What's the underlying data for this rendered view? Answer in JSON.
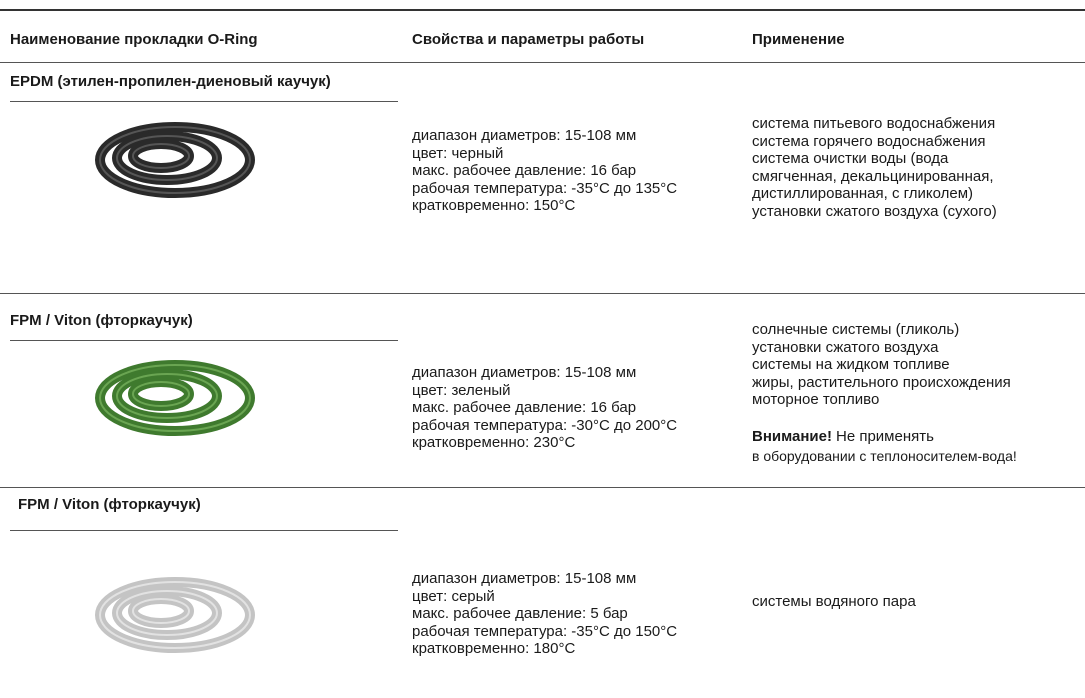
{
  "header": {
    "columns": [
      "Наименование прокладки O-Ring",
      "Свойства и параметры работы",
      "Применение"
    ]
  },
  "rows": [
    {
      "name": "EPDM (этилен-пропилен-диеновый каучук)",
      "properties": [
        "диапазон диаметров: 15-108 мм",
        "цвет: черный",
        "макс. рабочее давление: 16 бар",
        "рабочая температура: -35°C до 135°C",
        "кратковременно: 150°C"
      ],
      "application": [
        "система питьевого водоснабжения",
        "система горячего водоснабжения",
        "система очистки воды (вода",
        "смягченная, декальцинированная,",
        "дистиллированная, с гликолем)",
        "установки сжатого воздуха (сухого)"
      ]
    },
    {
      "name": "FPM / Viton (фторкаучук)",
      "properties": [
        "диапазон диаметров: 15-108 мм",
        "цвет: зеленый",
        "макс. рабочее давление: 16 бар",
        "рабочая температура: -30°C до 200°C",
        "кратковременно: 230°C"
      ],
      "application": [
        "солнечные системы (гликоль)",
        "установки сжатого воздуха",
        "системы на жидком топливе",
        "жиры, растительного происхождения",
        "моторное топливо"
      ],
      "warning": {
        "label": "Внимание!",
        "text": "Не применять",
        "detail": "в оборудовании с теплоносителем-вода!"
      }
    },
    {
      "name": "FPM / Viton (фторкаучук)",
      "properties": [
        "диапазон диаметров: 15-108 мм",
        "цвет: серый",
        "макс. рабочее давление: 5 бар",
        "рабочая температура: -35°C до 150°C",
        "кратковременно: 180°C"
      ],
      "application": [
        "системы водяного пара"
      ]
    }
  ]
}
